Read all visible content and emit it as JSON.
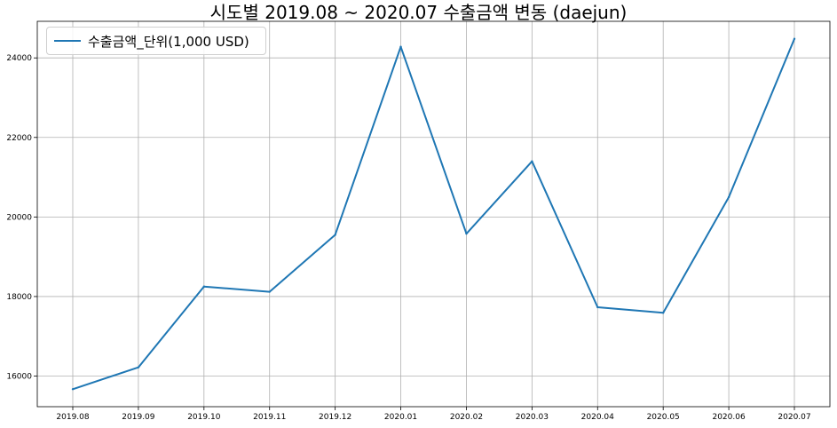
{
  "chart_data": {
    "type": "line",
    "title": "시도별 2019.08 ~ 2020.07 수출금액 변동 (daejun)",
    "xlabel": "",
    "ylabel": "",
    "categories": [
      "2019.08",
      "2019.09",
      "2019.10",
      "2019.11",
      "2019.12",
      "2020.01",
      "2020.02",
      "2020.03",
      "2020.04",
      "2020.05",
      "2020.06",
      "2020.07"
    ],
    "series": [
      {
        "name": "수출금액_단위(1,000 USD)",
        "values": [
          15670,
          16220,
          18250,
          18120,
          19550,
          24280,
          19580,
          21400,
          17730,
          17590,
          20500,
          24480
        ],
        "color": "#1f77b4"
      }
    ],
    "ylim": [
      15230,
      24920
    ],
    "yticks": [
      16000,
      18000,
      20000,
      22000,
      24000
    ],
    "grid": true,
    "legend": "top-left"
  }
}
